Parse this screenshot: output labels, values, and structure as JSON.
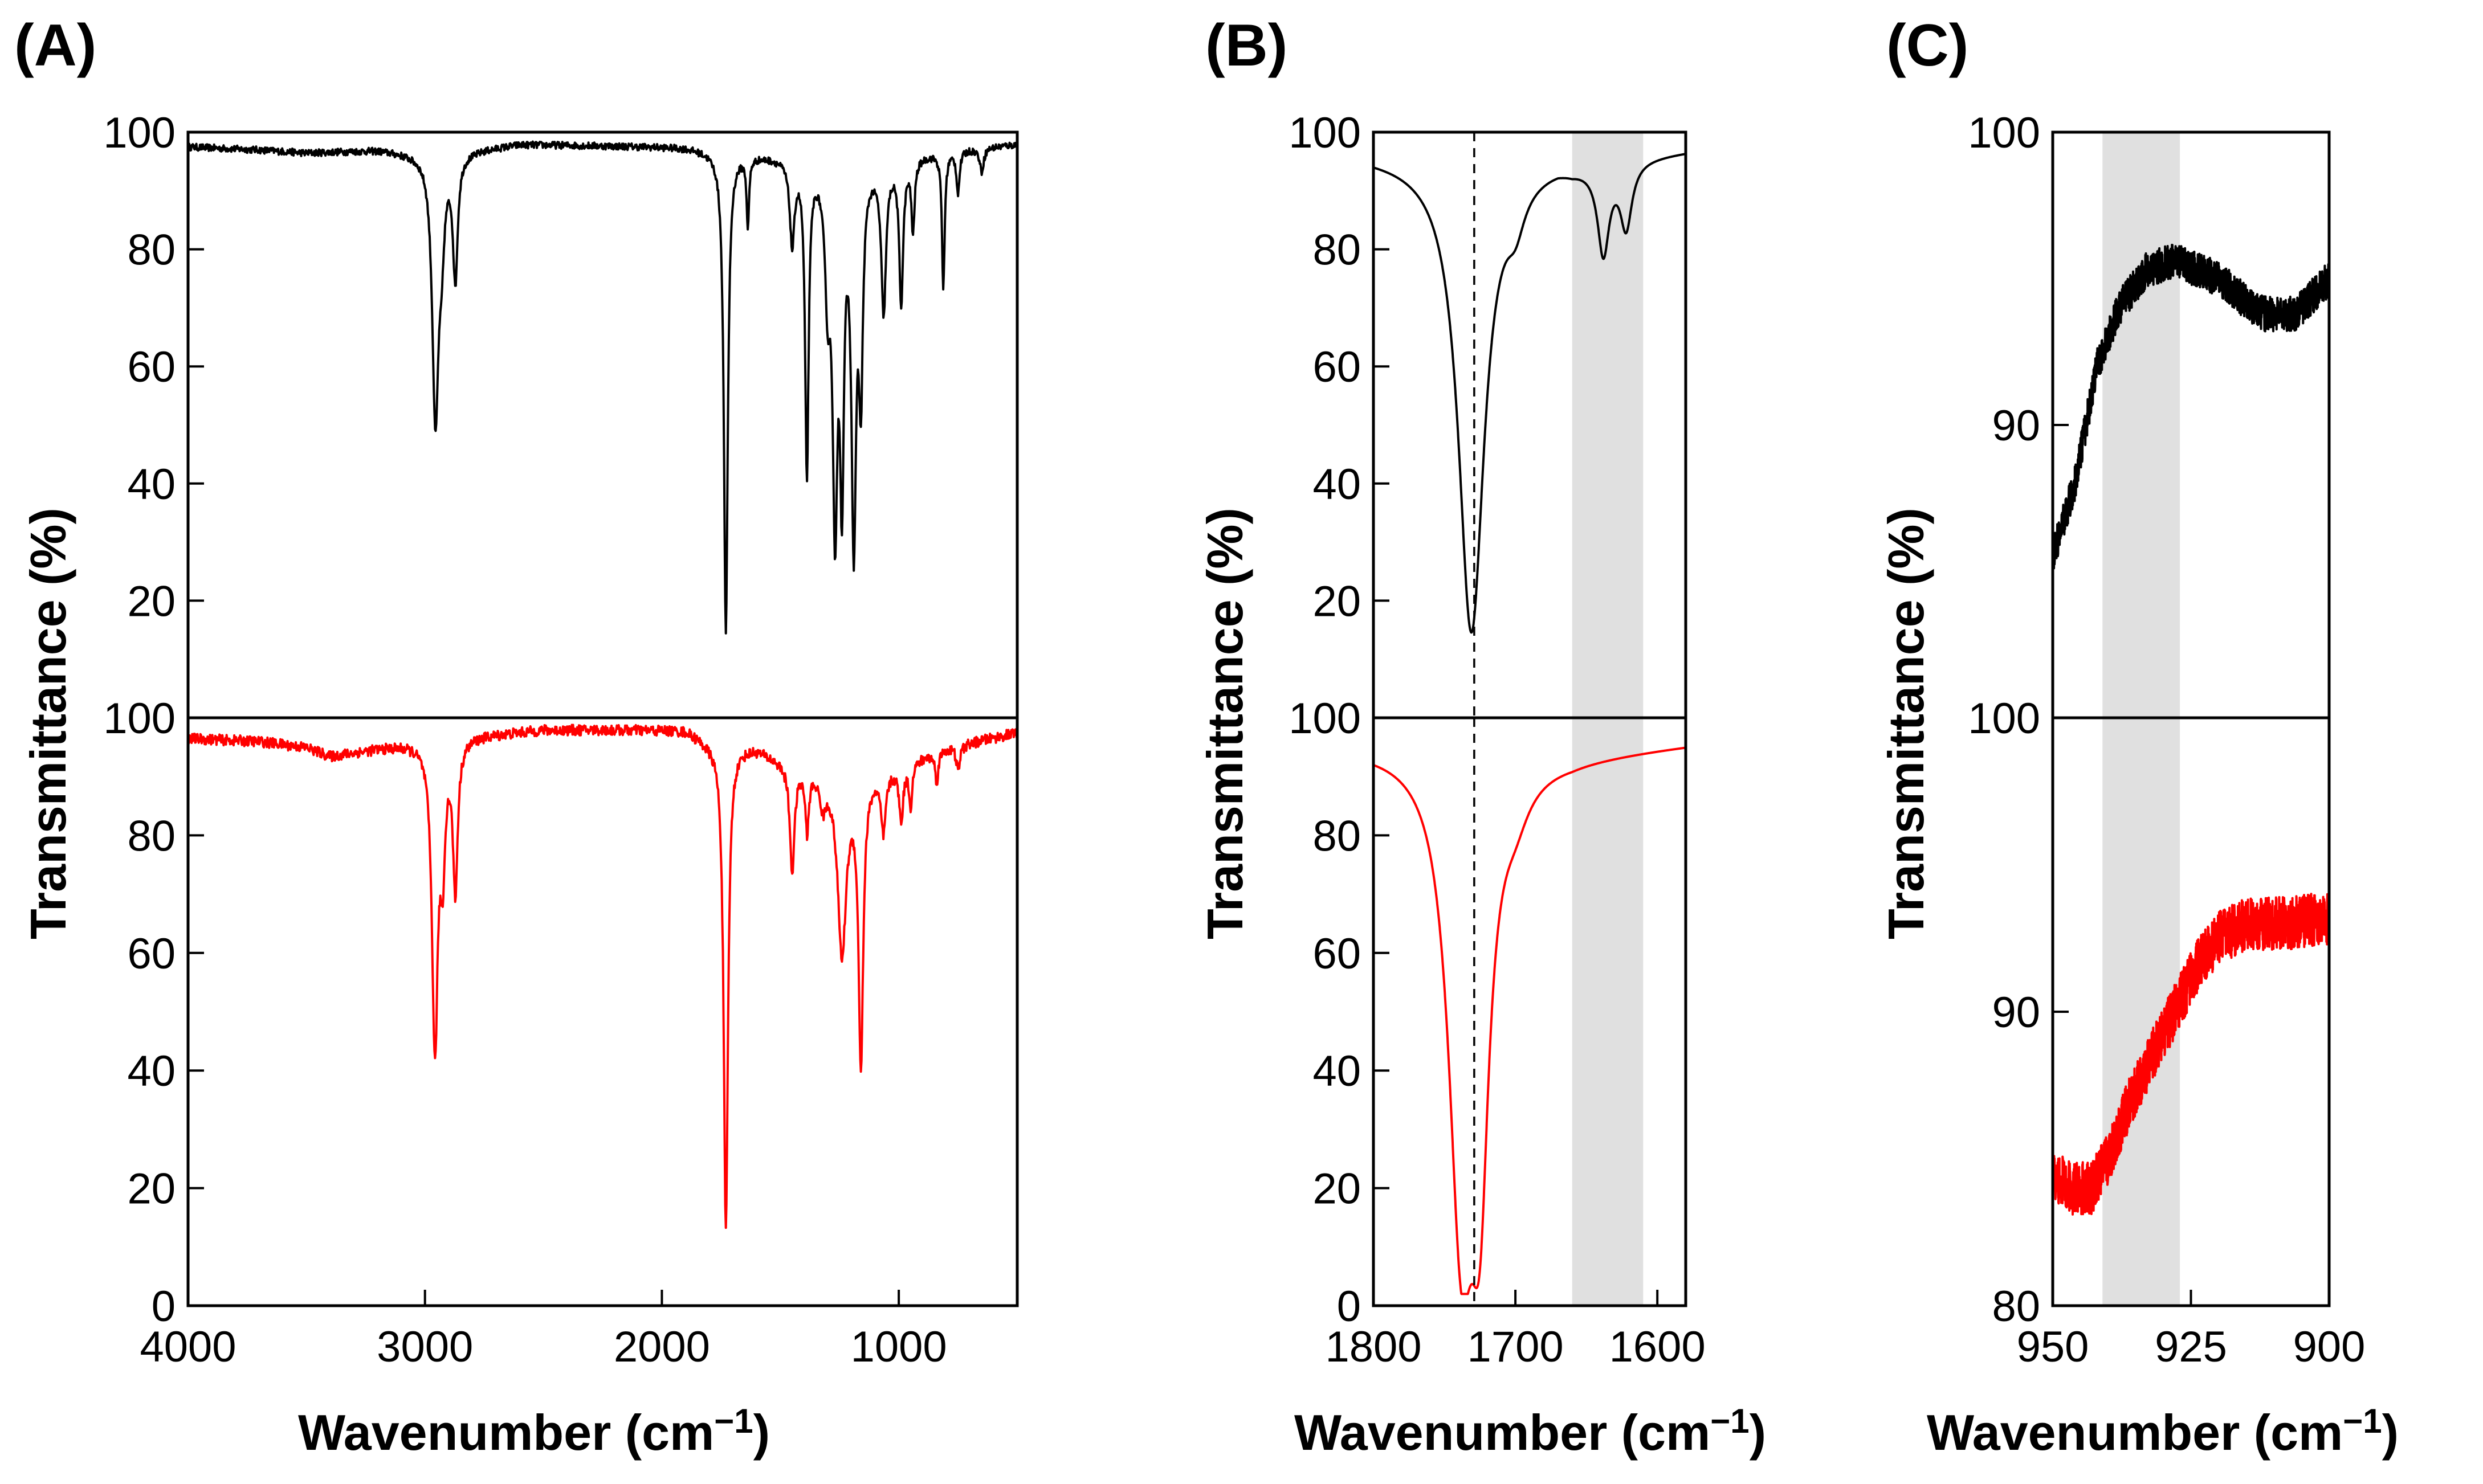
{
  "figure": {
    "ylabel": "Transmittance (%)",
    "xlabel": "Wavenumber (cm",
    "xlabel_sup": "−1",
    "xlabel_close": ")"
  },
  "chart_data": [
    {
      "panel": "(A)",
      "type": "line",
      "xlabel": "Wavenumber (cm−1)",
      "ylabel": "Transmittance (%)",
      "xlim": [
        4000,
        500
      ],
      "x_ticks": [
        4000,
        3000,
        2000,
        1000
      ],
      "dashed_line_x": null,
      "shaded_x": null,
      "subplots": [
        {
          "position": "top",
          "color": "#000000",
          "ylim": [
            0,
            100
          ],
          "y_ticks": [
            20,
            40,
            60,
            80,
            100
          ],
          "noise": 0.6,
          "baseline": [
            [
              4000,
              97.5
            ],
            [
              3700,
              97
            ],
            [
              3500,
              96.5
            ],
            [
              3200,
              97
            ],
            [
              3050,
              96.5
            ],
            [
              2800,
              97
            ],
            [
              2600,
              98
            ],
            [
              1900,
              97.5
            ],
            [
              1800,
              97
            ],
            [
              1500,
              96
            ],
            [
              1100,
              95
            ],
            [
              800,
              97
            ],
            [
              500,
              98
            ]
          ],
          "peaks": [
            {
              "center": 2956,
              "depth": 45,
              "width": 16
            },
            {
              "center": 2930,
              "depth": 12,
              "width": 14
            },
            {
              "center": 2872,
              "depth": 21,
              "width": 12
            },
            {
              "center": 1730,
              "depth": 82,
              "width": 10
            },
            {
              "center": 1637,
              "depth": 12,
              "width": 6
            },
            {
              "center": 1450,
              "depth": 14,
              "width": 12
            },
            {
              "center": 1388,
              "depth": 53,
              "width": 9
            },
            {
              "center": 1300,
              "depth": 20,
              "width": 14
            },
            {
              "center": 1269,
              "depth": 58,
              "width": 12
            },
            {
              "center": 1240,
              "depth": 50,
              "width": 10
            },
            {
              "center": 1190,
              "depth": 62,
              "width": 12
            },
            {
              "center": 1160,
              "depth": 35,
              "width": 10
            },
            {
              "center": 1064,
              "depth": 25,
              "width": 12
            },
            {
              "center": 990,
              "depth": 24,
              "width": 10
            },
            {
              "center": 940,
              "depth": 12,
              "width": 8
            },
            {
              "center": 812,
              "depth": 23,
              "width": 7
            },
            {
              "center": 750,
              "depth": 7,
              "width": 8
            },
            {
              "center": 650,
              "depth": 4,
              "width": 10
            }
          ]
        },
        {
          "position": "bottom",
          "color": "#ff0000",
          "ylim": [
            0,
            100
          ],
          "y_ticks": [
            0,
            20,
            40,
            60,
            80,
            100
          ],
          "noise": 0.9,
          "baseline": [
            [
              4000,
              96.5
            ],
            [
              3700,
              96
            ],
            [
              3500,
              95
            ],
            [
              3400,
              93.5
            ],
            [
              3100,
              95.5
            ],
            [
              2800,
              97
            ],
            [
              2500,
              98
            ],
            [
              1900,
              98
            ],
            [
              1800,
              96
            ],
            [
              1600,
              95
            ],
            [
              1500,
              93
            ],
            [
              1200,
              90
            ],
            [
              1000,
              92
            ],
            [
              800,
              95
            ],
            [
              500,
              97.5
            ]
          ],
          "peaks": [
            {
              "center": 2958,
              "depth": 52,
              "width": 15
            },
            {
              "center": 2925,
              "depth": 18,
              "width": 12
            },
            {
              "center": 2872,
              "depth": 25,
              "width": 12
            },
            {
              "center": 1730,
              "depth": 83,
              "width": 11
            },
            {
              "center": 1450,
              "depth": 18,
              "width": 12
            },
            {
              "center": 1387,
              "depth": 10,
              "width": 9
            },
            {
              "center": 1320,
              "depth": 5,
              "width": 15
            },
            {
              "center": 1240,
              "depth": 30,
              "width": 22
            },
            {
              "center": 1160,
              "depth": 48,
              "width": 12
            },
            {
              "center": 1065,
              "depth": 10,
              "width": 12
            },
            {
              "center": 990,
              "depth": 9,
              "width": 10
            },
            {
              "center": 950,
              "depth": 7,
              "width": 8
            },
            {
              "center": 840,
              "depth": 5,
              "width": 8
            },
            {
              "center": 750,
              "depth": 4,
              "width": 10
            }
          ]
        }
      ]
    },
    {
      "panel": "(B)",
      "type": "line",
      "xlabel": "Wavenumber (cm−1)",
      "ylabel": "Transmittance (%)",
      "xlim": [
        1800,
        1580
      ],
      "x_ticks": [
        1800,
        1700,
        1600
      ],
      "dashed_line_x": 1729,
      "shaded_x": [
        1660,
        1610
      ],
      "subplots": [
        {
          "position": "top",
          "color": "#000000",
          "ylim": [
            0,
            100
          ],
          "y_ticks": [
            20,
            40,
            60,
            80,
            100
          ],
          "noise": 0,
          "baseline": [
            [
              1800,
              96
            ],
            [
              1770,
              95.5
            ],
            [
              1740,
              95
            ],
            [
              1700,
              95
            ],
            [
              1670,
              95.5
            ],
            [
              1660,
              95
            ],
            [
              1600,
              96.5
            ],
            [
              1580,
              97
            ]
          ],
          "peaks": [
            {
              "center": 1731,
              "depth": 80,
              "width": 11
            },
            {
              "center": 1700,
              "depth": 6,
              "width": 8
            },
            {
              "center": 1638,
              "depth": 15,
              "width": 5
            },
            {
              "center": 1622,
              "depth": 11,
              "width": 5
            }
          ]
        },
        {
          "position": "bottom",
          "color": "#ff0000",
          "ylim": [
            0,
            100
          ],
          "y_ticks": [
            0,
            20,
            40,
            60,
            80,
            100
          ],
          "noise": 0,
          "baseline": [
            [
              1800,
              95
            ],
            [
              1760,
              95
            ],
            [
              1700,
              93.5
            ],
            [
              1660,
              93.5
            ],
            [
              1620,
              94.5
            ],
            [
              1580,
              95.5
            ]
          ],
          "peaks": [
            {
              "center": 1738,
              "depth": 77,
              "width": 11
            },
            {
              "center": 1725,
              "depth": 55,
              "width": 8
            },
            {
              "center": 1700,
              "depth": 5,
              "width": 12
            }
          ]
        }
      ]
    },
    {
      "panel": "(C)",
      "type": "line",
      "xlabel": "Wavenumber (cm−1)",
      "ylabel": "Transmittance (%)",
      "xlim": [
        950,
        900
      ],
      "x_ticks": [
        950,
        925,
        900
      ],
      "dashed_line_x": null,
      "shaded_x": [
        941,
        927
      ],
      "subplots": [
        {
          "position": "top",
          "color": "#000000",
          "ylim": [
            80,
            100
          ],
          "y_ticks": [
            90,
            100
          ],
          "noise": 0.6,
          "baseline": [
            [
              950,
              85.5
            ],
            [
              946,
              88
            ],
            [
              942,
              92
            ],
            [
              938,
              94
            ],
            [
              933,
              95.3
            ],
            [
              928,
              95.6
            ],
            [
              924,
              95.3
            ],
            [
              920,
              95
            ],
            [
              915,
              94.2
            ],
            [
              912,
              93.8
            ],
            [
              906,
              93.8
            ],
            [
              900,
              95
            ]
          ],
          "peaks": []
        },
        {
          "position": "bottom",
          "color": "#ff0000",
          "ylim": [
            80,
            100
          ],
          "y_ticks": [
            80,
            90,
            100
          ],
          "noise": 0.9,
          "baseline": [
            [
              950,
              84.5
            ],
            [
              947,
              84
            ],
            [
              943,
              84
            ],
            [
              940,
              85
            ],
            [
              937,
              86.5
            ],
            [
              932,
              88.5
            ],
            [
              928,
              90
            ],
            [
              924,
              91.5
            ],
            [
              920,
              92.5
            ],
            [
              915,
              93
            ],
            [
              908,
              93
            ],
            [
              900,
              93.2
            ]
          ],
          "peaks": []
        }
      ]
    }
  ]
}
